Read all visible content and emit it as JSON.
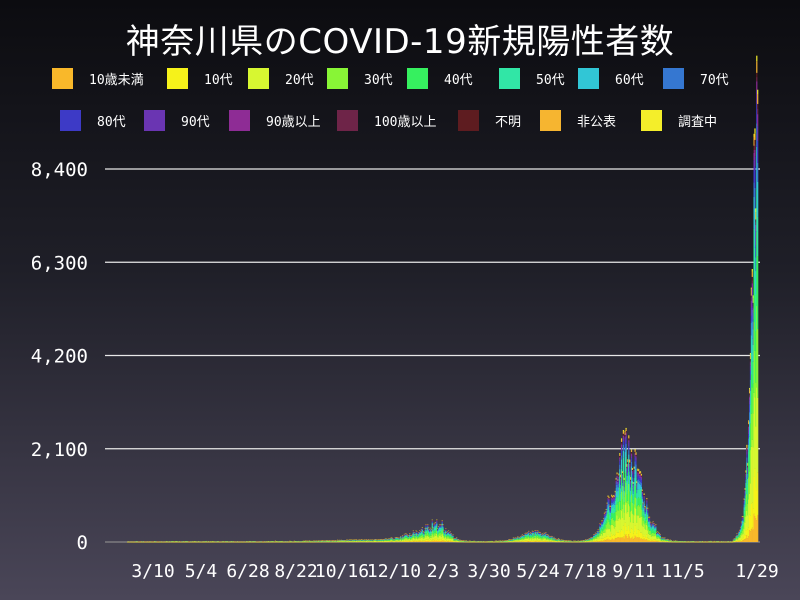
{
  "chart_data": {
    "type": "area",
    "stacked": true,
    "title": "神奈川県のCOVID-19新規陽性者数",
    "xlabel": "",
    "ylabel": "",
    "ylim": [
      0,
      8400
    ],
    "yticks": [
      0,
      2100,
      4200,
      6300,
      8400
    ],
    "ytick_labels": [
      "0",
      "2,100",
      "4,200",
      "6,300",
      "8,400"
    ],
    "xtick_labels": [
      "3/10",
      "5/4",
      "6/28",
      "8/22",
      "10/16",
      "12/10",
      "2/3",
      "3/30",
      "5/24",
      "7/18",
      "9/11",
      "11/5",
      "1/29"
    ],
    "grid": "horizontal",
    "legend_position": "top",
    "series": [
      {
        "name": "10歳未満",
        "color": "#f9b82a"
      },
      {
        "name": "10代",
        "color": "#f6f21a"
      },
      {
        "name": "20代",
        "color": "#d7f731"
      },
      {
        "name": "30代",
        "color": "#88f536"
      },
      {
        "name": "40代",
        "color": "#36f05f"
      },
      {
        "name": "50代",
        "color": "#31e6a6"
      },
      {
        "name": "60代",
        "color": "#31c6d6"
      },
      {
        "name": "70代",
        "color": "#3577d1"
      },
      {
        "name": "80代",
        "color": "#3d3ac6"
      },
      {
        "name": "90代",
        "color": "#6a35b2"
      },
      {
        "name": "90歳以上",
        "color": "#8e2c95"
      },
      {
        "name": "100歳以上",
        "color": "#6e2448"
      },
      {
        "name": "不明",
        "color": "#5e1c20"
      },
      {
        "name": "非公表",
        "color": "#f6b530"
      },
      {
        "name": "調査中",
        "color": "#f4ee2a"
      }
    ],
    "totals_approx": {
      "x": [
        "3/10",
        "5/4",
        "6/28",
        "8/22",
        "10/16",
        "12/10",
        "2/3",
        "3/30",
        "5/24",
        "7/18",
        "9/11",
        "11/5",
        "1/29"
      ],
      "values": [
        20,
        30,
        30,
        60,
        50,
        350,
        450,
        120,
        250,
        420,
        2350,
        30,
        8450
      ]
    }
  }
}
